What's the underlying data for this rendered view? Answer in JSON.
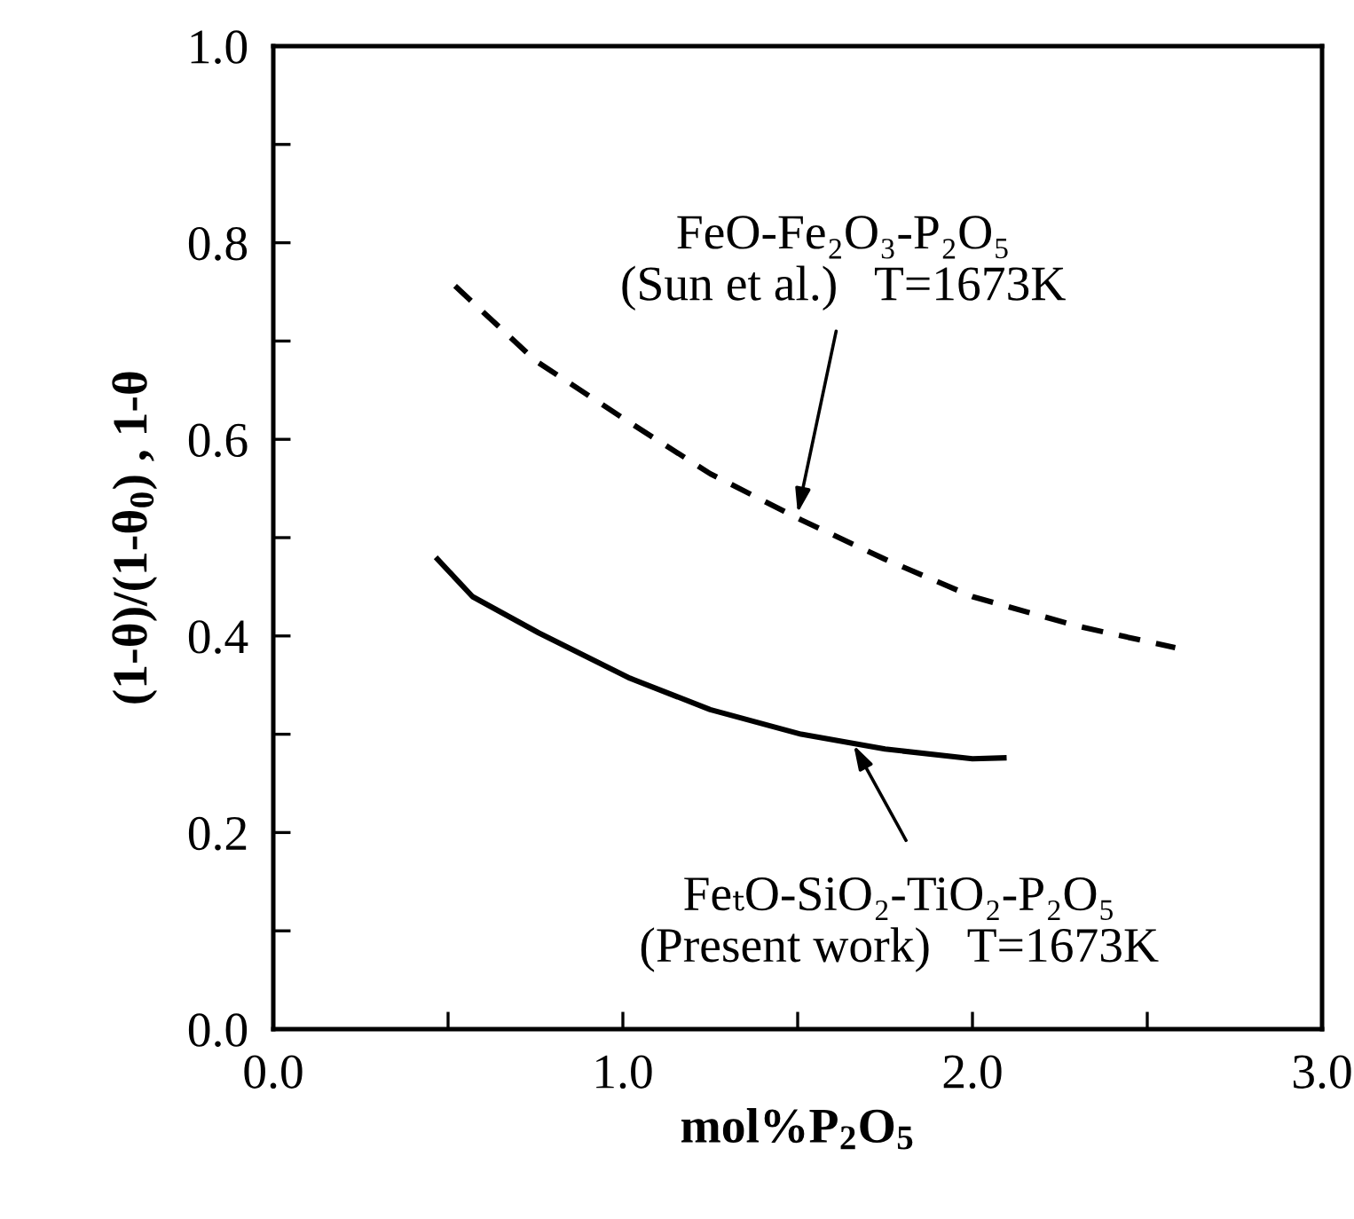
{
  "chart_data": {
    "type": "line",
    "xlabel": "mol%P$_{2}$O$_{5}$",
    "ylabel": "(1-θ)/(1-θ$_{0}$) , 1-θ",
    "series": [
      {
        "color": "#000000",
        "line_style": "dashed",
        "x": [
          0.52,
          0.75,
          1.02,
          1.25,
          1.51,
          1.75,
          2.0,
          2.3,
          2.58
        ],
        "values": [
          0.756,
          0.68,
          0.617,
          0.565,
          0.518,
          0.478,
          0.44,
          0.41,
          0.388
        ]
      },
      {
        "color": "#000000",
        "line_style": "solid",
        "x": [
          0.47,
          0.57,
          0.76,
          1.02,
          1.25,
          1.51,
          1.75,
          2.0,
          2.09
        ],
        "values": [
          0.478,
          0.44,
          0.403,
          0.357,
          0.325,
          0.3,
          0.285,
          0.275,
          0.276
        ]
      }
    ],
    "annotations": [
      {
        "text": "FeO-Fe₂O₃-P₂O₅\n(Sun et al.)   T=1673K",
        "x": 1.5,
        "y": 0.525
      },
      {
        "text": "FeₜO-SiO₂-TiO₂-P₂O₅\n(Present work)   T=1673K",
        "x": 1.66,
        "y": 0.289
      }
    ],
    "xlim": [
      0,
      3
    ],
    "ylim": [
      0,
      1
    ],
    "xticks": [
      {
        "value": 0,
        "label": "0.0"
      },
      {
        "value": 0.5,
        "label": null
      },
      {
        "value": 1,
        "label": "1.0"
      },
      {
        "value": 1.5,
        "label": null
      },
      {
        "value": 2,
        "label": "2.0"
      },
      {
        "value": 2.5,
        "label": null
      },
      {
        "value": 3,
        "label": "3.0"
      }
    ],
    "yticks": [
      {
        "value": 0,
        "label": "0.0"
      },
      {
        "value": 0.1,
        "label": null
      },
      {
        "value": 0.2,
        "label": "0.2"
      },
      {
        "value": 0.3,
        "label": null
      },
      {
        "value": 0.4,
        "label": "0.4"
      },
      {
        "value": 0.5,
        "label": null
      },
      {
        "value": 0.6,
        "label": "0.6"
      },
      {
        "value": 0.7,
        "label": null
      },
      {
        "value": 0.8,
        "label": "0.8"
      },
      {
        "value": 0.9,
        "label": null
      },
      {
        "value": 1,
        "label": "1.0"
      }
    ],
    "grid": false,
    "legend": false
  }
}
